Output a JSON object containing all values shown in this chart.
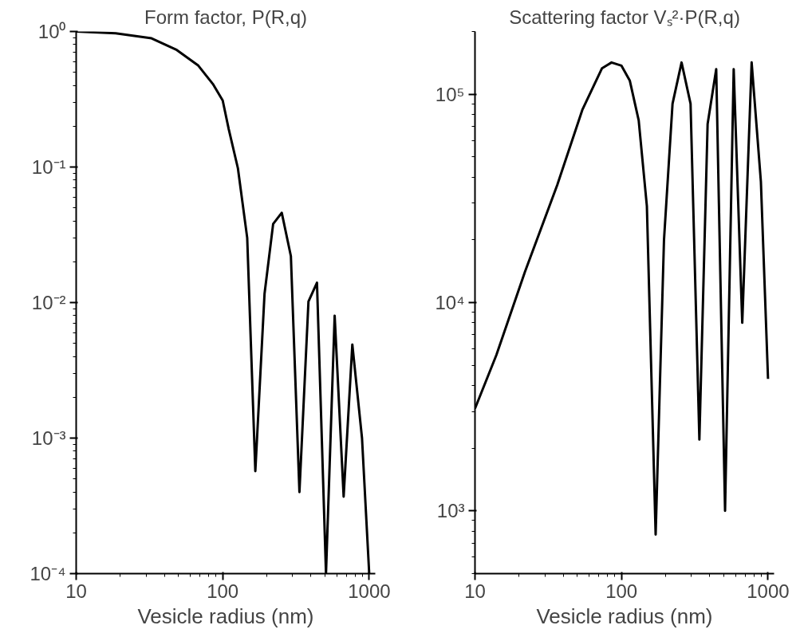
{
  "chart_data": [
    {
      "type": "line",
      "title": "Form factor, P(R,q)",
      "xlabel": "Vesicle radius (nm)",
      "log": "xy",
      "xlim": [
        10,
        1100
      ],
      "ylim": [
        0.0001,
        1
      ],
      "xticks": [
        10,
        100,
        1000
      ],
      "yticks": [
        {
          "value": 1,
          "label": "10⁰"
        },
        {
          "value": 0.1,
          "label": "10⁻¹"
        },
        {
          "value": 0.01,
          "label": "10⁻²"
        },
        {
          "value": 0.001,
          "label": "10⁻³"
        },
        {
          "value": 0.0001,
          "label": "10⁻⁴"
        }
      ],
      "x": [
        10,
        18.6,
        32.7,
        48.6,
        68.2,
        85.7,
        100,
        110,
        127,
        147,
        167,
        193,
        221,
        253,
        292,
        334,
        385,
        440,
        507,
        581,
        669,
        767,
        893,
        1000
      ],
      "series": [
        {
          "color": "#000000",
          "values": [
            1.0,
            0.97,
            0.89,
            0.73,
            0.56,
            0.41,
            0.31,
            0.19,
            0.098,
            0.03,
            0.00057,
            0.0116,
            0.038,
            0.046,
            0.022,
            0.0004,
            0.0102,
            0.014,
            0.0001,
            0.008,
            0.00037,
            0.0049,
            0.001,
            0.0001
          ]
        }
      ]
    },
    {
      "type": "line",
      "title": "Scattering factor Vₛ²·P(R,q)",
      "xlabel": "Vesicle radius (nm)",
      "log": "xy",
      "xlim": [
        10,
        1100
      ],
      "ylim": [
        500,
        200000
      ],
      "xticks": [
        10,
        100,
        1000
      ],
      "yticks": [
        {
          "value": 1000,
          "label": "10³"
        },
        {
          "value": 10000,
          "label": "10⁴"
        },
        {
          "value": 100000,
          "label": "10⁵"
        }
      ],
      "x": [
        10,
        14,
        21.9,
        36.4,
        54,
        73.5,
        85.5,
        100,
        114,
        131,
        149,
        171,
        195,
        223,
        257,
        296,
        340,
        387,
        443,
        509,
        583,
        667,
        773,
        894,
        1000
      ],
      "series": [
        {
          "color": "#000000",
          "values": [
            3100,
            5600,
            14000,
            36600,
            84000,
            133000,
            142000,
            137000,
            116000,
            75000,
            29000,
            770,
            20000,
            90000,
            142000,
            90000,
            2200,
            72000,
            132000,
            1000,
            132000,
            8000,
            142000,
            38000,
            4300
          ]
        }
      ]
    }
  ]
}
